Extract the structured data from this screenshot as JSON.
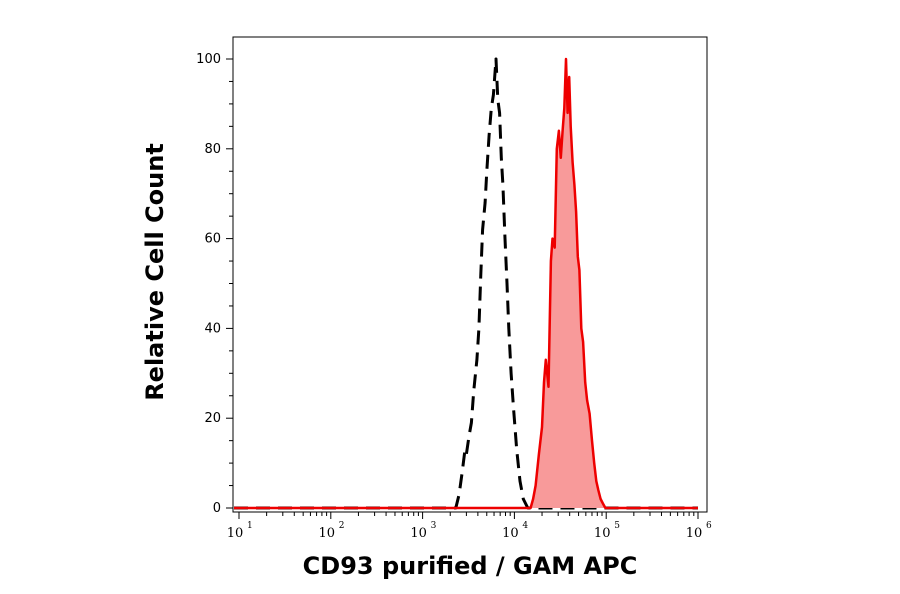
{
  "chart_data": {
    "type": "area",
    "xlabel": "CD93 purified / GAM APC",
    "ylabel": "Relative Cell Count",
    "x_scale": "log",
    "xlim": [
      10,
      1000000
    ],
    "ylim": [
      0,
      105
    ],
    "x_ticks": [
      {
        "base": "10",
        "exp": "1",
        "value": 10
      },
      {
        "base": "10",
        "exp": "2",
        "value": 100
      },
      {
        "base": "10",
        "exp": "3",
        "value": 1000
      },
      {
        "base": "10",
        "exp": "4",
        "value": 10000
      },
      {
        "base": "10",
        "exp": "5",
        "value": 100000
      },
      {
        "base": "10",
        "exp": "6",
        "value": 1000000
      }
    ],
    "y_ticks": [
      "0",
      "20",
      "40",
      "60",
      "80",
      "100"
    ],
    "y_tick_values": [
      0,
      20,
      40,
      60,
      80,
      100
    ],
    "grid": false,
    "series": [
      {
        "style": "dashed",
        "color": "#000000",
        "fill": "none",
        "points": [
          [
            6,
            0
          ],
          [
            2300,
            0
          ],
          [
            2500,
            3
          ],
          [
            2700,
            8
          ],
          [
            2900,
            13
          ],
          [
            3000,
            12
          ],
          [
            3200,
            16
          ],
          [
            3400,
            19
          ],
          [
            3600,
            26
          ],
          [
            3900,
            33
          ],
          [
            4100,
            40
          ],
          [
            4300,
            52
          ],
          [
            4500,
            62
          ],
          [
            4800,
            68
          ],
          [
            5000,
            75
          ],
          [
            5300,
            83
          ],
          [
            5600,
            89
          ],
          [
            5900,
            92
          ],
          [
            6100,
            96
          ],
          [
            6300,
            100
          ],
          [
            6600,
            91
          ],
          [
            6900,
            88
          ],
          [
            7200,
            78
          ],
          [
            7500,
            72
          ],
          [
            7900,
            60
          ],
          [
            8300,
            50
          ],
          [
            8700,
            40
          ],
          [
            9200,
            30
          ],
          [
            9800,
            22
          ],
          [
            10600,
            13
          ],
          [
            11500,
            6
          ],
          [
            12500,
            2
          ],
          [
            14000,
            0
          ],
          [
            1000000,
            0
          ]
        ]
      },
      {
        "style": "solid",
        "color": "#ee0000",
        "fill": "#f89a9a",
        "points": [
          [
            6,
            0
          ],
          [
            15000,
            0
          ],
          [
            16000,
            2
          ],
          [
            17000,
            5
          ],
          [
            18500,
            12
          ],
          [
            20000,
            18
          ],
          [
            21000,
            28
          ],
          [
            22000,
            33
          ],
          [
            23500,
            27
          ],
          [
            25000,
            55
          ],
          [
            26000,
            60
          ],
          [
            27500,
            58
          ],
          [
            29000,
            80
          ],
          [
            30500,
            84
          ],
          [
            32000,
            78
          ],
          [
            33500,
            84
          ],
          [
            35000,
            89
          ],
          [
            36500,
            100
          ],
          [
            38000,
            88
          ],
          [
            39500,
            96
          ],
          [
            41000,
            85
          ],
          [
            43000,
            77
          ],
          [
            45000,
            72
          ],
          [
            47000,
            66
          ],
          [
            49000,
            56
          ],
          [
            51000,
            53
          ],
          [
            53500,
            40
          ],
          [
            56000,
            37
          ],
          [
            59000,
            28
          ],
          [
            62000,
            24
          ],
          [
            66000,
            21
          ],
          [
            70000,
            15
          ],
          [
            74000,
            10
          ],
          [
            78000,
            6
          ],
          [
            82000,
            4
          ],
          [
            87000,
            2
          ],
          [
            92000,
            1
          ],
          [
            98000,
            0
          ],
          [
            1000000,
            0
          ]
        ]
      }
    ]
  }
}
